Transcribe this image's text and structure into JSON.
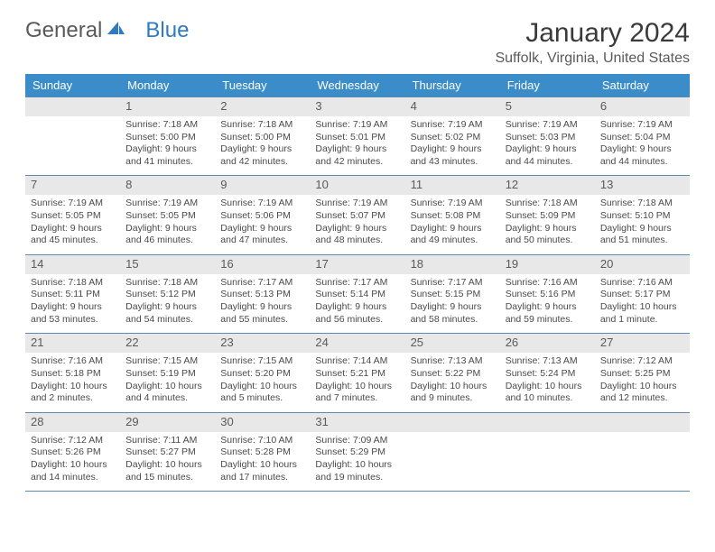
{
  "brand": {
    "part1": "General",
    "part2": "Blue"
  },
  "title": "January 2024",
  "location": "Suffolk, Virginia, United States",
  "colors": {
    "header_bg": "#3b8dc9",
    "header_fg": "#ffffff",
    "daynum_bg": "#e8e8e8",
    "border": "#5b8bb5",
    "text": "#4a4a4a",
    "brand_gray": "#5a5a5a",
    "brand_blue": "#2f7bbf"
  },
  "weekdays": [
    "Sunday",
    "Monday",
    "Tuesday",
    "Wednesday",
    "Thursday",
    "Friday",
    "Saturday"
  ],
  "weeks": [
    [
      null,
      {
        "n": "1",
        "sr": "7:18 AM",
        "ss": "5:00 PM",
        "dl": "9 hours and 41 minutes."
      },
      {
        "n": "2",
        "sr": "7:18 AM",
        "ss": "5:00 PM",
        "dl": "9 hours and 42 minutes."
      },
      {
        "n": "3",
        "sr": "7:19 AM",
        "ss": "5:01 PM",
        "dl": "9 hours and 42 minutes."
      },
      {
        "n": "4",
        "sr": "7:19 AM",
        "ss": "5:02 PM",
        "dl": "9 hours and 43 minutes."
      },
      {
        "n": "5",
        "sr": "7:19 AM",
        "ss": "5:03 PM",
        "dl": "9 hours and 44 minutes."
      },
      {
        "n": "6",
        "sr": "7:19 AM",
        "ss": "5:04 PM",
        "dl": "9 hours and 44 minutes."
      }
    ],
    [
      {
        "n": "7",
        "sr": "7:19 AM",
        "ss": "5:05 PM",
        "dl": "9 hours and 45 minutes."
      },
      {
        "n": "8",
        "sr": "7:19 AM",
        "ss": "5:05 PM",
        "dl": "9 hours and 46 minutes."
      },
      {
        "n": "9",
        "sr": "7:19 AM",
        "ss": "5:06 PM",
        "dl": "9 hours and 47 minutes."
      },
      {
        "n": "10",
        "sr": "7:19 AM",
        "ss": "5:07 PM",
        "dl": "9 hours and 48 minutes."
      },
      {
        "n": "11",
        "sr": "7:19 AM",
        "ss": "5:08 PM",
        "dl": "9 hours and 49 minutes."
      },
      {
        "n": "12",
        "sr": "7:18 AM",
        "ss": "5:09 PM",
        "dl": "9 hours and 50 minutes."
      },
      {
        "n": "13",
        "sr": "7:18 AM",
        "ss": "5:10 PM",
        "dl": "9 hours and 51 minutes."
      }
    ],
    [
      {
        "n": "14",
        "sr": "7:18 AM",
        "ss": "5:11 PM",
        "dl": "9 hours and 53 minutes."
      },
      {
        "n": "15",
        "sr": "7:18 AM",
        "ss": "5:12 PM",
        "dl": "9 hours and 54 minutes."
      },
      {
        "n": "16",
        "sr": "7:17 AM",
        "ss": "5:13 PM",
        "dl": "9 hours and 55 minutes."
      },
      {
        "n": "17",
        "sr": "7:17 AM",
        "ss": "5:14 PM",
        "dl": "9 hours and 56 minutes."
      },
      {
        "n": "18",
        "sr": "7:17 AM",
        "ss": "5:15 PM",
        "dl": "9 hours and 58 minutes."
      },
      {
        "n": "19",
        "sr": "7:16 AM",
        "ss": "5:16 PM",
        "dl": "9 hours and 59 minutes."
      },
      {
        "n": "20",
        "sr": "7:16 AM",
        "ss": "5:17 PM",
        "dl": "10 hours and 1 minute."
      }
    ],
    [
      {
        "n": "21",
        "sr": "7:16 AM",
        "ss": "5:18 PM",
        "dl": "10 hours and 2 minutes."
      },
      {
        "n": "22",
        "sr": "7:15 AM",
        "ss": "5:19 PM",
        "dl": "10 hours and 4 minutes."
      },
      {
        "n": "23",
        "sr": "7:15 AM",
        "ss": "5:20 PM",
        "dl": "10 hours and 5 minutes."
      },
      {
        "n": "24",
        "sr": "7:14 AM",
        "ss": "5:21 PM",
        "dl": "10 hours and 7 minutes."
      },
      {
        "n": "25",
        "sr": "7:13 AM",
        "ss": "5:22 PM",
        "dl": "10 hours and 9 minutes."
      },
      {
        "n": "26",
        "sr": "7:13 AM",
        "ss": "5:24 PM",
        "dl": "10 hours and 10 minutes."
      },
      {
        "n": "27",
        "sr": "7:12 AM",
        "ss": "5:25 PM",
        "dl": "10 hours and 12 minutes."
      }
    ],
    [
      {
        "n": "28",
        "sr": "7:12 AM",
        "ss": "5:26 PM",
        "dl": "10 hours and 14 minutes."
      },
      {
        "n": "29",
        "sr": "7:11 AM",
        "ss": "5:27 PM",
        "dl": "10 hours and 15 minutes."
      },
      {
        "n": "30",
        "sr": "7:10 AM",
        "ss": "5:28 PM",
        "dl": "10 hours and 17 minutes."
      },
      {
        "n": "31",
        "sr": "7:09 AM",
        "ss": "5:29 PM",
        "dl": "10 hours and 19 minutes."
      },
      null,
      null,
      null
    ]
  ],
  "labels": {
    "sunrise": "Sunrise: ",
    "sunset": "Sunset: ",
    "daylight": "Daylight: "
  }
}
